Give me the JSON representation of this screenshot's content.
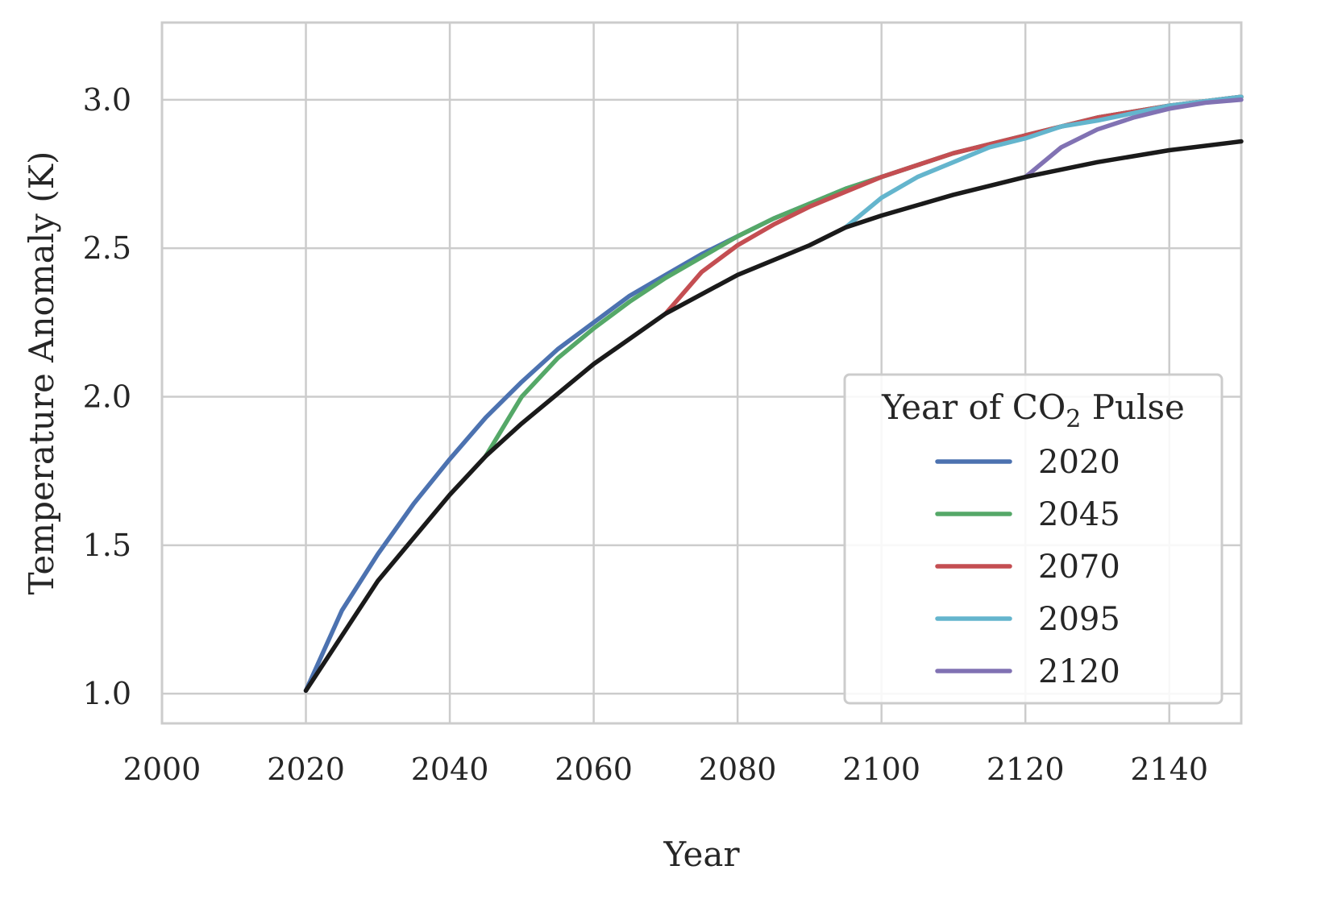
{
  "chart_data": {
    "type": "line",
    "title": "",
    "xlabel": "Year",
    "ylabel": "Temperature Anomaly (K)",
    "xlim": [
      2000,
      2150
    ],
    "ylim": [
      0.9,
      3.26
    ],
    "xticks": [
      2000,
      2020,
      2040,
      2060,
      2080,
      2100,
      2120,
      2140
    ],
    "xtick_labels": [
      "2000",
      "2020",
      "2040",
      "2060",
      "2080",
      "2100",
      "2120",
      "2140"
    ],
    "yticks": [
      1.0,
      1.5,
      2.0,
      2.5,
      3.0
    ],
    "ytick_labels": [
      "1.0",
      "1.5",
      "2.0",
      "2.5",
      "3.0"
    ],
    "grid": true,
    "legend": {
      "title_prefix": "Year of CO",
      "title_subscript": "2",
      "title_suffix": " Pulse",
      "location": "lower-right"
    },
    "baseline": {
      "color": "#1a1a1a",
      "x": [
        2020,
        2030,
        2040,
        2045,
        2050,
        2060,
        2070,
        2080,
        2090,
        2095,
        2100,
        2110,
        2120,
        2130,
        2140,
        2150
      ],
      "y": [
        1.01,
        1.38,
        1.67,
        1.8,
        1.91,
        2.11,
        2.28,
        2.41,
        2.51,
        2.57,
        2.61,
        2.68,
        2.74,
        2.79,
        2.83,
        2.86
      ]
    },
    "series": [
      {
        "name": "2020",
        "color": "#4c72b0",
        "x": [
          2020,
          2025,
          2030,
          2035,
          2040,
          2045,
          2050,
          2055,
          2060,
          2065,
          2070,
          2075,
          2080,
          2085,
          2090,
          2095,
          2100,
          2110,
          2120,
          2130,
          2140,
          2150
        ],
        "y": [
          1.01,
          1.28,
          1.47,
          1.64,
          1.79,
          1.93,
          2.05,
          2.16,
          2.25,
          2.34,
          2.41,
          2.48,
          2.54,
          2.6,
          2.65,
          2.7,
          2.74,
          2.82,
          2.88,
          2.94,
          2.98,
          3.01
        ]
      },
      {
        "name": "2045",
        "color": "#55a868",
        "x": [
          2045,
          2050,
          2055,
          2060,
          2065,
          2070,
          2075,
          2080,
          2085,
          2090,
          2095,
          2100,
          2110,
          2120,
          2130,
          2140,
          2150
        ],
        "y": [
          1.8,
          2.0,
          2.13,
          2.23,
          2.32,
          2.4,
          2.47,
          2.54,
          2.6,
          2.65,
          2.7,
          2.74,
          2.82,
          2.88,
          2.94,
          2.98,
          3.01
        ]
      },
      {
        "name": "2070",
        "color": "#c44e52",
        "x": [
          2070,
          2075,
          2080,
          2085,
          2090,
          2095,
          2100,
          2110,
          2120,
          2130,
          2140,
          2150
        ],
        "y": [
          2.28,
          2.42,
          2.51,
          2.58,
          2.64,
          2.69,
          2.74,
          2.82,
          2.88,
          2.94,
          2.98,
          3.01
        ]
      },
      {
        "name": "2095",
        "color": "#64b5cd",
        "x": [
          2095,
          2100,
          2105,
          2110,
          2115,
          2120,
          2125,
          2130,
          2140,
          2150
        ],
        "y": [
          2.57,
          2.67,
          2.74,
          2.79,
          2.84,
          2.87,
          2.91,
          2.93,
          2.98,
          3.01
        ]
      },
      {
        "name": "2120",
        "color": "#8172b3",
        "x": [
          2120,
          2125,
          2130,
          2135,
          2140,
          2145,
          2150
        ],
        "y": [
          2.74,
          2.84,
          2.9,
          2.94,
          2.97,
          2.99,
          3.0
        ]
      }
    ]
  }
}
